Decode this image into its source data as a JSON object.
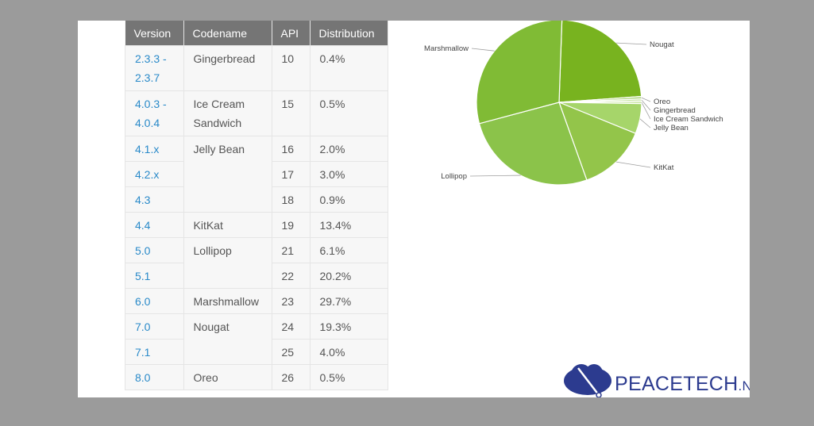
{
  "table": {
    "headers": [
      "Version",
      "Codename",
      "API",
      "Distribution"
    ],
    "rows": [
      {
        "version": "2.3.3 -\n2.3.7",
        "codename": "Gingerbread",
        "api": "10",
        "dist": "0.4%"
      },
      {
        "version": "4.0.3 -\n4.0.4",
        "codename": "Ice Cream\nSandwich",
        "api": "15",
        "dist": "0.5%"
      },
      {
        "version": "4.1.x",
        "codename": "Jelly Bean",
        "api": "16",
        "dist": "2.0%"
      },
      {
        "version": "4.2.x",
        "api": "17",
        "dist": "3.0%"
      },
      {
        "version": "4.3",
        "api": "18",
        "dist": "0.9%"
      },
      {
        "version": "4.4",
        "codename": "KitKat",
        "api": "19",
        "dist": "13.4%"
      },
      {
        "version": "5.0",
        "codename": "Lollipop",
        "api": "21",
        "dist": "6.1%"
      },
      {
        "version": "5.1",
        "api": "22",
        "dist": "20.2%"
      },
      {
        "version": "6.0",
        "codename": "Marshmallow",
        "api": "23",
        "dist": "29.7%"
      },
      {
        "version": "7.0",
        "codename": "Nougat",
        "api": "24",
        "dist": "19.3%"
      },
      {
        "version": "7.1",
        "api": "25",
        "dist": "4.0%"
      },
      {
        "version": "8.0",
        "codename": "Oreo",
        "api": "26",
        "dist": "0.5%"
      }
    ]
  },
  "chart_data": {
    "type": "pie",
    "slices": [
      {
        "label": "Nougat",
        "value": 23.3,
        "color": "#78b31f"
      },
      {
        "label": "Oreo",
        "value": 0.5,
        "color": "#b5d98a"
      },
      {
        "label": "Gingerbread",
        "value": 0.4,
        "color": "#c4e29d"
      },
      {
        "label": "Ice Cream Sandwich",
        "value": 0.5,
        "color": "#d3eab3"
      },
      {
        "label": "Jelly Bean",
        "value": 5.9,
        "color": "#a6d56a"
      },
      {
        "label": "KitKat",
        "value": 13.4,
        "color": "#93c54a"
      },
      {
        "label": "Lollipop",
        "value": 26.3,
        "color": "#8bc34a"
      },
      {
        "label": "Marshmallow",
        "value": 29.7,
        "color": "#80bb35"
      }
    ]
  },
  "logo": {
    "brand": "PEACETECH",
    "suffix": ".NET"
  }
}
